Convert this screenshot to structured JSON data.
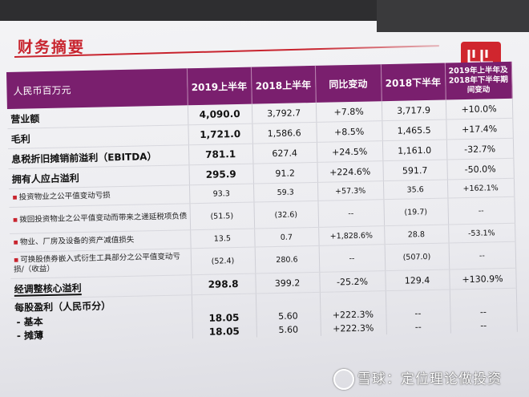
{
  "page": {
    "title": "财务摘要",
    "logo": "ww"
  },
  "table": {
    "headers": [
      "人民币百万元",
      "2019上半年",
      "2018上半年",
      "同比变动",
      "2018下半年",
      "2019年上半年及2018年下半年期间变动"
    ],
    "rows": [
      {
        "label": "营业额",
        "type": "main",
        "values": [
          "4,090.0",
          "3,792.7",
          "+7.8%",
          "3,717.9",
          "+10.0%"
        ]
      },
      {
        "label": "毛利",
        "type": "main",
        "values": [
          "1,721.0",
          "1,586.6",
          "+8.5%",
          "1,465.5",
          "+17.4%"
        ]
      },
      {
        "label": "息税折旧摊销前溢利（EBITDA）",
        "type": "main",
        "values": [
          "781.1",
          "627.4",
          "+24.5%",
          "1,161.0",
          "-32.7%"
        ]
      },
      {
        "label": "拥有人应占溢利",
        "type": "main",
        "values": [
          "295.9",
          "91.2",
          "+224.6%",
          "591.7",
          "-50.0%"
        ]
      },
      {
        "label": "投资物业之公平值变动亏损",
        "type": "sub",
        "values": [
          "93.3",
          "59.3",
          "+57.3%",
          "35.6",
          "+162.1%"
        ]
      },
      {
        "label": "拨回投资物业之公平值变动而带来之递延税项负债",
        "type": "sub",
        "values": [
          "(51.5)",
          "(32.6)",
          "--",
          "(19.7)",
          "--"
        ]
      },
      {
        "label": "物业、厂房及设备的资产减值损失",
        "type": "sub",
        "values": [
          "13.5",
          "0.7",
          "+1,828.6%",
          "28.8",
          "-53.1%"
        ]
      },
      {
        "label": "可换股债券嵌入式衍生工具部分之公平值变动亏损/（收益）",
        "type": "sub",
        "values": [
          "(52.4)",
          "280.6",
          "--",
          "(507.0)",
          "--"
        ]
      },
      {
        "label": "经调整核心溢利",
        "type": "main",
        "values": [
          "298.8",
          "399.2",
          "-25.2%",
          "129.4",
          "+130.9%"
        ]
      }
    ],
    "eps": {
      "label": "每股盈利（人民币分）",
      "basic_label": "- 基本",
      "diluted_label": "- 摊薄",
      "basic": [
        "18.05",
        "5.60",
        "+222.3%",
        "--",
        "--"
      ],
      "diluted": [
        "18.05",
        "5.60",
        "+222.3%",
        "--",
        "--"
      ]
    }
  },
  "watermark": "雪球：定位理论做投资"
}
